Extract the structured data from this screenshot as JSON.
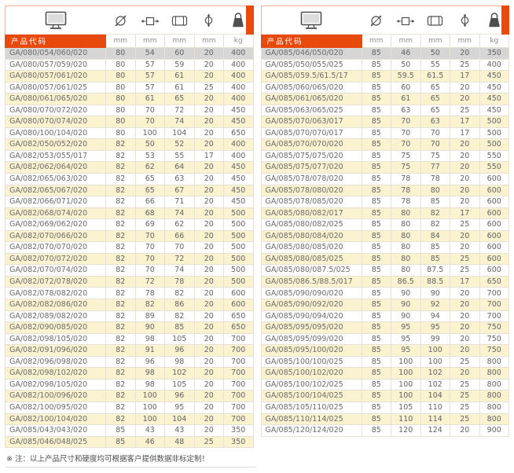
{
  "colors": {
    "accent": "#e8490d",
    "row_highlight": "#d6d6d6",
    "row_alt": "#fbf3d0"
  },
  "header": {
    "code_label": "产品代码",
    "units": [
      "mm",
      "mm",
      "mm",
      "mm",
      "kg"
    ],
    "icons": [
      "monitor-icon",
      "diameter-icon",
      "width-icon",
      "roller-icon",
      "bore-icon",
      "weight-icon"
    ]
  },
  "tables": [
    {
      "rows": [
        [
          "GA/080/054/060/020",
          "80",
          "54",
          "60",
          "20",
          "400"
        ],
        [
          "GA/080/057/059/020",
          "80",
          "57",
          "59",
          "20",
          "400"
        ],
        [
          "GA/080/057/061/020",
          "80",
          "57",
          "61",
          "20",
          "400"
        ],
        [
          "GA/080/057/061/025",
          "80",
          "57",
          "61",
          "25",
          "400"
        ],
        [
          "GA/080/061/065/020",
          "80",
          "61",
          "65",
          "20",
          "400"
        ],
        [
          "GA/080/070/072/020",
          "80",
          "70",
          "72",
          "20",
          "450"
        ],
        [
          "GA/080/070/074/020",
          "80",
          "70",
          "74",
          "20",
          "450"
        ],
        [
          "GA/080/100/104/020",
          "80",
          "100",
          "104",
          "20",
          "650"
        ],
        [
          "GA/082/050/052/020",
          "82",
          "50",
          "52",
          "20",
          "400"
        ],
        [
          "GA/082/053/055/017",
          "82",
          "53",
          "55",
          "17",
          "400"
        ],
        [
          "GA/082/062/064/020",
          "82",
          "62",
          "64",
          "20",
          "450"
        ],
        [
          "GA/082/065/063/020",
          "82",
          "65",
          "63",
          "20",
          "450"
        ],
        [
          "GA/082/065/067/020",
          "82",
          "65",
          "67",
          "20",
          "450"
        ],
        [
          "GA/082/066/071/020",
          "82",
          "66",
          "71",
          "20",
          "450"
        ],
        [
          "GA/082/068/074/020",
          "82",
          "68",
          "74",
          "20",
          "500"
        ],
        [
          "GA/082/069/062/020",
          "82",
          "69",
          "62",
          "20",
          "500"
        ],
        [
          "GA/082/070/066/020",
          "82",
          "70",
          "66",
          "20",
          "500"
        ],
        [
          "GA/082/070/070/020",
          "82",
          "70",
          "70",
          "20",
          "500"
        ],
        [
          "GA/082/070/072/020",
          "82",
          "70",
          "72",
          "20",
          "500"
        ],
        [
          "GA/082/070/074/020",
          "82",
          "70",
          "74",
          "20",
          "500"
        ],
        [
          "GA/082/072/078/020",
          "82",
          "72",
          "78",
          "20",
          "500"
        ],
        [
          "GA/082/078/082/020",
          "82",
          "78",
          "82",
          "20",
          "600"
        ],
        [
          "GA/082/082/086/020",
          "82",
          "82",
          "86",
          "20",
          "600"
        ],
        [
          "GA/082/089/082/020",
          "82",
          "89",
          "82",
          "20",
          "650"
        ],
        [
          "GA/082/090/085/020",
          "82",
          "90",
          "85",
          "20",
          "650"
        ],
        [
          "GA/082/098/105/020",
          "82",
          "98",
          "105",
          "20",
          "700"
        ],
        [
          "GA/082/091/096/020",
          "82",
          "91",
          "96",
          "20",
          "700"
        ],
        [
          "GA/082/096/098/020",
          "82",
          "96",
          "98",
          "20",
          "700"
        ],
        [
          "GA/082/098/102/020",
          "82",
          "98",
          "102",
          "20",
          "700"
        ],
        [
          "GA/082/098/105/020",
          "82",
          "98",
          "105",
          "20",
          "700"
        ],
        [
          "GA/082/100/096/020",
          "82",
          "100",
          "96",
          "20",
          "700"
        ],
        [
          "GA/082/100/095/020",
          "82",
          "100",
          "95",
          "20",
          "700"
        ],
        [
          "GA/082/100/104/020",
          "82",
          "100",
          "104",
          "20",
          "700"
        ],
        [
          "GA/085/043/043/020",
          "85",
          "43",
          "43",
          "20",
          "350"
        ],
        [
          "GA/085/046/048/025",
          "85",
          "46",
          "48",
          "25",
          "350"
        ]
      ]
    },
    {
      "rows": [
        [
          "GA/085/046/050/020",
          "85",
          "46",
          "50",
          "20",
          "350"
        ],
        [
          "GA/085/050/055/025",
          "85",
          "50",
          "55",
          "25",
          "400"
        ],
        [
          "GA/085/059.5/61.5/17",
          "85",
          "59.5",
          "61.5",
          "17",
          "450"
        ],
        [
          "GA/085/060/065/020",
          "85",
          "60",
          "65",
          "20",
          "450"
        ],
        [
          "GA/085/061/065/020",
          "85",
          "61",
          "65",
          "20",
          "450"
        ],
        [
          "GA/085/063/065/025",
          "85",
          "63",
          "65",
          "25",
          "450"
        ],
        [
          "GA/085/070/063/017",
          "85",
          "70",
          "63",
          "17",
          "500"
        ],
        [
          "GA/085/070/070/017",
          "85",
          "70",
          "70",
          "17",
          "500"
        ],
        [
          "GA/085/070/070/020",
          "85",
          "70",
          "70",
          "20",
          "500"
        ],
        [
          "GA/085/075/075/020",
          "85",
          "75",
          "75",
          "20",
          "550"
        ],
        [
          "GA/085/075/077/020",
          "85",
          "75",
          "77",
          "20",
          "550"
        ],
        [
          "GA/085/078/078/020",
          "85",
          "78",
          "78",
          "20",
          "600"
        ],
        [
          "GA/085/078/080/020",
          "85",
          "78",
          "80",
          "20",
          "600"
        ],
        [
          "GA/085/078/085/020",
          "85",
          "78",
          "85",
          "20",
          "600"
        ],
        [
          "GA/085/080/082/017",
          "85",
          "80",
          "82",
          "17",
          "600"
        ],
        [
          "GA/085/080/082/025",
          "85",
          "80",
          "82",
          "25",
          "600"
        ],
        [
          "GA/085/080/084/020",
          "85",
          "80",
          "84",
          "20",
          "600"
        ],
        [
          "GA/085/080/085/020",
          "85",
          "80",
          "85",
          "20",
          "600"
        ],
        [
          "GA/085/080/085/025",
          "85",
          "80",
          "85",
          "25",
          "600"
        ],
        [
          "GA/085/080/087.5/025",
          "85",
          "80",
          "87.5",
          "25",
          "600"
        ],
        [
          "GA/085/086.5/88.5/017",
          "85",
          "86.5",
          "88.5",
          "17",
          "650"
        ],
        [
          "GA/085/090/090/020",
          "85",
          "90",
          "90",
          "20",
          "700"
        ],
        [
          "GA/085/090/092/020",
          "85",
          "90",
          "92",
          "20",
          "700"
        ],
        [
          "GA/085/090/094/020",
          "85",
          "90",
          "94",
          "20",
          "700"
        ],
        [
          "GA/085/095/095/020",
          "85",
          "95",
          "95",
          "20",
          "750"
        ],
        [
          "GA/085/095/099/020",
          "85",
          "95",
          "99",
          "20",
          "750"
        ],
        [
          "GA/085/095/100/020",
          "85",
          "95",
          "100",
          "20",
          "750"
        ],
        [
          "GA/085/100/100/025",
          "85",
          "100",
          "100",
          "25",
          "800"
        ],
        [
          "GA/085/100/102/020",
          "85",
          "100",
          "102",
          "20",
          "800"
        ],
        [
          "GA/085/100/102/025",
          "85",
          "100",
          "102",
          "25",
          "800"
        ],
        [
          "GA/085/100/104/025",
          "85",
          "100",
          "104",
          "25",
          "800"
        ],
        [
          "GA/085/105/110/025",
          "85",
          "105",
          "110",
          "25",
          "800"
        ],
        [
          "GA/085/110/114/025",
          "85",
          "110",
          "114",
          "25",
          "800"
        ],
        [
          "GA/085/120/124/020",
          "85",
          "120",
          "124",
          "20",
          "900"
        ]
      ]
    }
  ],
  "note": "※ 注：以上产品尺寸和硬度均可根据客户提供数据非标定制！"
}
